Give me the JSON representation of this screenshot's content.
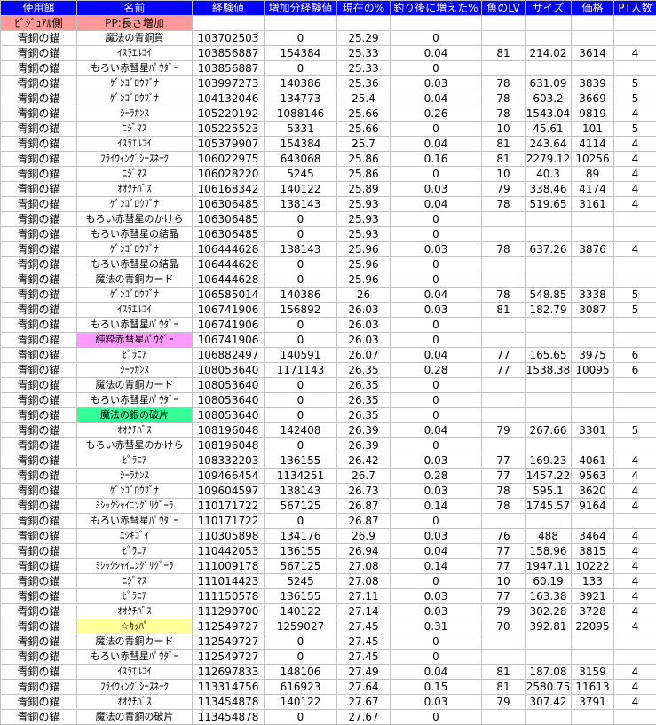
{
  "colors": {
    "header_bg": "#0000FF",
    "header_text": "#FFFFFF",
    "subheader_bg": "#FF9999"
  },
  "headers": [
    "使用餌",
    "名前",
    "経験値",
    "増加分経験値",
    "現在の%",
    "釣り後に増えた%",
    "魚のLV",
    "サイズ",
    "価格",
    "PT人数"
  ],
  "subheader": [
    "ﾋﾞｼﾞｭｱﾙ側",
    "PP:長さ増加",
    "",
    "",
    "",
    "",
    "",
    "",
    "",
    ""
  ],
  "highlights": {
    "20": "#FF99FF",
    "25": "#33FF99",
    "39": "#FFFF99"
  },
  "rows": [
    [
      "青銅の錨",
      "魔法の青銅貨",
      "103702503",
      "0",
      "25.29",
      "0",
      "",
      "",
      "",
      ""
    ],
    [
      "青銅の錨",
      "ｲｽﾗｴﾙｺｲ",
      "103856887",
      "154384",
      "25.33",
      "0.04",
      "81",
      "214.02",
      "3614",
      "4"
    ],
    [
      "青銅の錨",
      "もろい赤彗星ﾊﾟｳﾀﾞｰ",
      "103856887",
      "0",
      "25.33",
      "0",
      "",
      "",
      "",
      ""
    ],
    [
      "青銅の錨",
      "ｹﾞﾝｺﾞﾛｳﾌﾞﾅ",
      "103997273",
      "140386",
      "25.36",
      "0.03",
      "78",
      "631.09",
      "3839",
      "5"
    ],
    [
      "青銅の錨",
      "ｹﾞﾝｺﾞﾛｳﾌﾞﾅ",
      "104132046",
      "134773",
      "25.4",
      "0.04",
      "78",
      "603.2",
      "3669",
      "5"
    ],
    [
      "青銅の錨",
      "ｼｰﾗｶﾝｽ",
      "105220192",
      "1088146",
      "25.66",
      "0.26",
      "78",
      "1543.04",
      "9819",
      "4"
    ],
    [
      "青銅の錨",
      "ﾆｼﾞﾏｽ",
      "105225523",
      "5331",
      "25.66",
      "0",
      "10",
      "45.61",
      "101",
      "5"
    ],
    [
      "青銅の錨",
      "ｲｽﾗｴﾙｺｲ",
      "105379907",
      "154384",
      "25.7",
      "0.04",
      "81",
      "243.64",
      "4114",
      "4"
    ],
    [
      "青銅の錨",
      "ﾌﾗｲｳｨﾝｸﾞｼｰｽﾈｰｸ",
      "106022975",
      "643068",
      "25.86",
      "0.16",
      "81",
      "2279.12",
      "10256",
      "4"
    ],
    [
      "青銅の錨",
      "ﾆｼﾞﾏｽ",
      "106028220",
      "5245",
      "25.86",
      "0",
      "10",
      "40.3",
      "89",
      "4"
    ],
    [
      "青銅の錨",
      "ｵｵｸﾁﾊﾞｽ",
      "106168342",
      "140122",
      "25.89",
      "0.03",
      "79",
      "338.46",
      "4174",
      "4"
    ],
    [
      "青銅の錨",
      "ｹﾞﾝｺﾞﾛｳﾌﾞﾅ",
      "106306485",
      "138143",
      "25.93",
      "0.04",
      "78",
      "519.65",
      "3161",
      "4"
    ],
    [
      "青銅の錨",
      "もろい赤彗星のかけら",
      "106306485",
      "0",
      "25.93",
      "0",
      "",
      "",
      "",
      ""
    ],
    [
      "青銅の錨",
      "もろい赤彗星の結晶",
      "106306485",
      "0",
      "25.93",
      "0",
      "",
      "",
      "",
      ""
    ],
    [
      "青銅の錨",
      "ｹﾞﾝｺﾞﾛｳﾌﾞﾅ",
      "106444628",
      "138143",
      "25.96",
      "0.03",
      "78",
      "637.26",
      "3876",
      "4"
    ],
    [
      "青銅の錨",
      "もろい赤彗星の結晶",
      "106444628",
      "0",
      "25.96",
      "0",
      "",
      "",
      "",
      ""
    ],
    [
      "青銅の錨",
      "魔法の青銅カード",
      "106444628",
      "0",
      "25.96",
      "0",
      "",
      "",
      "",
      ""
    ],
    [
      "青銅の錨",
      "ｹﾞﾝｺﾞﾛｳﾌﾞﾅ",
      "106585014",
      "140386",
      "26",
      "0.04",
      "78",
      "548.85",
      "3338",
      "5"
    ],
    [
      "青銅の錨",
      "ｲｽﾗｴﾙｺｲ",
      "106741906",
      "156892",
      "26.03",
      "0.03",
      "81",
      "182.79",
      "3087",
      "5"
    ],
    [
      "青銅の錨",
      "もろい赤彗星ﾊﾟｳﾀﾞｰ",
      "106741906",
      "0",
      "26.03",
      "0",
      "",
      "",
      "",
      ""
    ],
    [
      "青銅の錨",
      "純粋赤彗星ﾊﾟｳﾀﾞｰ",
      "106741906",
      "0",
      "26.03",
      "0",
      "",
      "",
      "",
      ""
    ],
    [
      "青銅の錨",
      "ﾋﾟﾗﾆｱ",
      "106882497",
      "140591",
      "26.07",
      "0.04",
      "77",
      "165.65",
      "3975",
      "6"
    ],
    [
      "青銅の錨",
      "ｼｰﾗｶﾝｽ",
      "108053640",
      "1171143",
      "26.35",
      "0.28",
      "77",
      "1538.38",
      "10095",
      "6"
    ],
    [
      "青銅の錨",
      "魔法の青銅カード",
      "108053640",
      "0",
      "26.35",
      "0",
      "",
      "",
      "",
      ""
    ],
    [
      "青銅の錨",
      "もろい赤彗星ﾊﾟｳﾀﾞｰ",
      "108053640",
      "0",
      "26.35",
      "0",
      "",
      "",
      "",
      ""
    ],
    [
      "青銅の錨",
      "魔法の銀の破片",
      "108053640",
      "0",
      "26.35",
      "0",
      "",
      "",
      "",
      ""
    ],
    [
      "青銅の錨",
      "ｵｵｸﾁﾊﾞｽ",
      "108196048",
      "142408",
      "26.39",
      "0.04",
      "79",
      "267.66",
      "3301",
      "5"
    ],
    [
      "青銅の錨",
      "もろい赤彗星のかけら",
      "108196048",
      "0",
      "26.39",
      "0",
      "",
      "",
      "",
      ""
    ],
    [
      "青銅の錨",
      "ﾋﾟﾗﾆｱ",
      "108332203",
      "136155",
      "26.42",
      "0.03",
      "77",
      "169.23",
      "4061",
      "4"
    ],
    [
      "青銅の錨",
      "ｼｰﾗｶﾝｽ",
      "109466454",
      "1134251",
      "26.7",
      "0.28",
      "77",
      "1457.22",
      "9563",
      "4"
    ],
    [
      "青銅の錨",
      "ｹﾞﾝｺﾞﾛｳﾌﾞﾅ",
      "109604597",
      "138143",
      "26.73",
      "0.03",
      "78",
      "595.1",
      "3620",
      "4"
    ],
    [
      "青銅の錨",
      "ﾐｼｯｸｼｬｲﾆﾝｸﾞﾘｸﾞｰﾗ",
      "110171722",
      "567125",
      "26.87",
      "0.14",
      "78",
      "1745.57",
      "9164",
      "4"
    ],
    [
      "青銅の錨",
      "もろい赤彗星ﾊﾟｳﾀﾞｰ",
      "110171722",
      "0",
      "26.87",
      "0",
      "",
      "",
      "",
      ""
    ],
    [
      "青銅の錨",
      "ﾆｼｷｺﾞｲ",
      "110305898",
      "134176",
      "26.9",
      "0.03",
      "76",
      "488",
      "3464",
      "4"
    ],
    [
      "青銅の錨",
      "ﾋﾟﾗﾆｱ",
      "110442053",
      "136155",
      "26.94",
      "0.04",
      "77",
      "158.96",
      "3815",
      "4"
    ],
    [
      "青銅の錨",
      "ﾐｼｯｸｼｬｲﾆﾝｸﾞﾘｸﾞｰﾗ",
      "111009178",
      "567125",
      "27.08",
      "0.14",
      "77",
      "1947.11",
      "10222",
      "4"
    ],
    [
      "青銅の錨",
      "ﾆｼﾞﾏｽ",
      "111014423",
      "5245",
      "27.08",
      "0",
      "10",
      "60.19",
      "133",
      "4"
    ],
    [
      "青銅の錨",
      "ﾋﾟﾗﾆｱ",
      "111150578",
      "136155",
      "27.11",
      "0.03",
      "77",
      "163.38",
      "3921",
      "4"
    ],
    [
      "青銅の錨",
      "ｵｵｸﾁﾊﾞｽ",
      "111290700",
      "140122",
      "27.14",
      "0.03",
      "79",
      "302.28",
      "3728",
      "4"
    ],
    [
      "青銅の錨",
      "☆ｶｯﾊﾟ",
      "112549727",
      "1259027",
      "27.45",
      "0.31",
      "70",
      "392.81",
      "22095",
      "4"
    ],
    [
      "青銅の錨",
      "魔法の青銅カード",
      "112549727",
      "0",
      "27.45",
      "0",
      "",
      "",
      "",
      ""
    ],
    [
      "青銅の錨",
      "もろい赤彗星ﾊﾟｳﾀﾞｰ",
      "112549727",
      "0",
      "27.45",
      "0",
      "",
      "",
      "",
      ""
    ],
    [
      "青銅の錨",
      "ｲｽﾗｴﾙｺｲ",
      "112697833",
      "148106",
      "27.49",
      "0.04",
      "81",
      "187.08",
      "3159",
      "4"
    ],
    [
      "青銅の錨",
      "ﾌﾗｲｳｨﾝｸﾞｼｰｽﾈｰｸ",
      "113314756",
      "616923",
      "27.64",
      "0.15",
      "81",
      "2580.75",
      "11613",
      "4"
    ],
    [
      "青銅の錨",
      "ｵｵｸﾁﾊﾞｽ",
      "113454878",
      "140122",
      "27.67",
      "0.03",
      "79",
      "307.42",
      "3791",
      "4"
    ],
    [
      "青銅の錨",
      "魔法の青銅の破片",
      "113454878",
      "0",
      "27.67",
      "0",
      "",
      "",
      "",
      ""
    ]
  ]
}
